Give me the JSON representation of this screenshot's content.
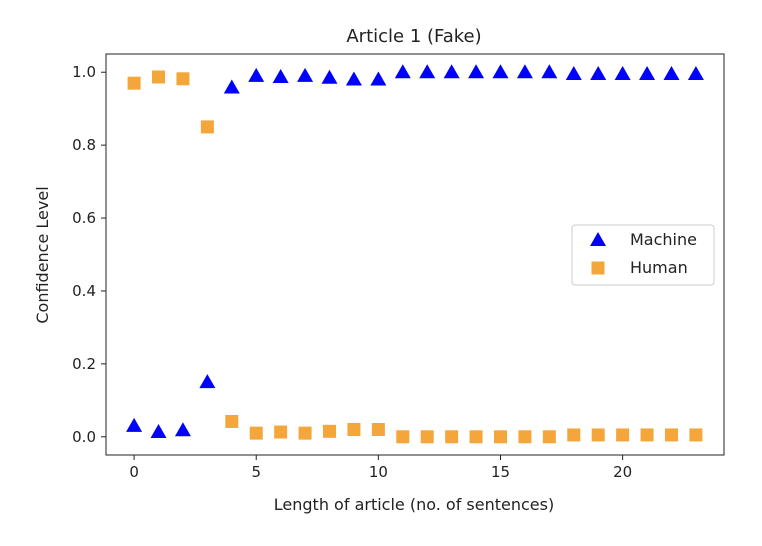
{
  "chart_data": {
    "type": "scatter",
    "title": "Article 1 (Fake)",
    "xlabel": "Length of article (no. of sentences)",
    "ylabel": "Confidence Level",
    "xlim": [
      -1.15,
      24.15
    ],
    "ylim": [
      -0.05,
      1.05
    ],
    "xticks": [
      0,
      5,
      10,
      15,
      20
    ],
    "xtick_labels": [
      "0",
      "5",
      "10",
      "15",
      "20"
    ],
    "yticks": [
      0.0,
      0.2,
      0.4,
      0.6,
      0.8,
      1.0
    ],
    "ytick_labels": [
      "0.0",
      "0.2",
      "0.4",
      "0.6",
      "0.8",
      "1.0"
    ],
    "grid": false,
    "legend_position": "center-right",
    "x": [
      0,
      1,
      2,
      3,
      4,
      5,
      6,
      7,
      8,
      9,
      10,
      11,
      12,
      13,
      14,
      15,
      16,
      17,
      18,
      19,
      20,
      21,
      22,
      23
    ],
    "series": [
      {
        "name": "Machine",
        "marker": "triangle",
        "color": "#0000ff",
        "values": [
          0.03,
          0.013,
          0.018,
          0.15,
          0.958,
          0.99,
          0.987,
          0.99,
          0.985,
          0.98,
          0.98,
          1.0,
          1.0,
          1.0,
          1.0,
          1.0,
          1.0,
          1.0,
          0.995,
          0.995,
          0.995,
          0.995,
          0.995,
          0.995
        ]
      },
      {
        "name": "Human",
        "marker": "square",
        "color": "#f4a63b",
        "values": [
          0.97,
          0.987,
          0.982,
          0.85,
          0.042,
          0.01,
          0.013,
          0.01,
          0.015,
          0.02,
          0.02,
          0.0,
          0.0,
          0.0,
          0.0,
          0.0,
          0.0,
          0.0,
          0.005,
          0.005,
          0.005,
          0.005,
          0.005,
          0.005
        ]
      }
    ]
  }
}
